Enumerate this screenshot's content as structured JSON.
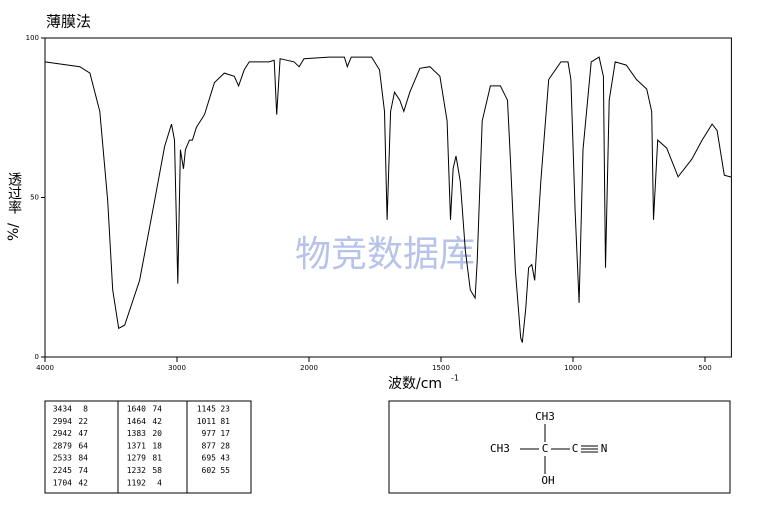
{
  "chart_data": {
    "type": "line",
    "title": "薄膜法",
    "x_label": "波数/cm",
    "x_label_sup": "-1",
    "y_label": "透过率",
    "y_unit": "%/",
    "watermark": "物竞数据库",
    "xlim": [
      4000,
      400
    ],
    "xticks": [
      4000,
      3000,
      2000,
      1500,
      1000,
      500
    ],
    "ylim": [
      0,
      100
    ],
    "yticks": [
      0,
      50,
      100
    ],
    "color": "#000000",
    "x": [
      4000,
      3736,
      3660,
      3585,
      3525,
      3487,
      3442,
      3396,
      3283,
      3170,
      3094,
      3042,
      3019,
      2994,
      2974,
      2951,
      2936,
      2906,
      2883,
      2853,
      2792,
      2717,
      2642,
      2566,
      2533,
      2491,
      2453,
      2302,
      2264,
      2245,
      2219,
      2113,
      2075,
      2038,
      1924,
      1866,
      1855,
      1840,
      1763,
      1733,
      1714,
      1704,
      1691,
      1676,
      1656,
      1641,
      1618,
      1580,
      1542,
      1504,
      1477,
      1464,
      1454,
      1443,
      1427,
      1408,
      1389,
      1371,
      1363,
      1344,
      1313,
      1275,
      1248,
      1237,
      1218,
      1198,
      1192,
      1179,
      1168,
      1156,
      1145,
      1122,
      1092,
      1046,
      1019,
      1008,
      992,
      977,
      962,
      931,
      901,
      885,
      877,
      863,
      840,
      798,
      760,
      721,
      702,
      695,
      679,
      645,
      602,
      550,
      511,
      473,
      454,
      427,
      400
    ],
    "values": [
      92.5,
      91,
      89,
      77,
      49,
      21,
      9,
      10,
      24,
      49,
      66,
      73,
      68,
      23,
      65,
      59,
      65,
      68,
      68,
      72,
      76,
      86,
      89,
      88,
      85,
      90,
      92.5,
      92.5,
      93,
      76,
      93.5,
      92.5,
      91,
      93.5,
      94,
      94,
      91,
      94,
      94,
      90,
      77,
      43,
      77,
      83,
      80.5,
      77,
      83,
      90.5,
      91,
      88,
      74,
      43,
      59,
      63,
      55,
      33.5,
      21,
      18.5,
      30,
      74,
      85,
      85,
      80.5,
      62,
      27,
      6,
      4.5,
      15,
      28,
      29,
      24,
      55,
      87,
      92.5,
      92.5,
      87,
      46,
      17,
      65,
      92.5,
      94,
      88,
      28,
      80.5,
      92.5,
      91.5,
      87,
      84,
      77,
      43,
      68,
      65.5,
      56.5,
      62,
      68,
      73,
      71,
      57,
      56.4
    ]
  },
  "peak_table": {
    "rows": [
      [
        3434,
        8,
        1640,
        74,
        1145,
        23
      ],
      [
        2994,
        22,
        1464,
        42,
        1011,
        81
      ],
      [
        2942,
        47,
        1383,
        20,
        977,
        17
      ],
      [
        2879,
        64,
        1371,
        18,
        877,
        28
      ],
      [
        2533,
        84,
        1279,
        81,
        695,
        43
      ],
      [
        2245,
        74,
        1232,
        58,
        602,
        55
      ],
      [
        1704,
        42,
        1192,
        4
      ]
    ]
  },
  "structure": {
    "top": "CH3",
    "left": "CH3",
    "center": "C",
    "nitrile_c": "C",
    "nitrogen": "N",
    "bottom": "OH"
  }
}
